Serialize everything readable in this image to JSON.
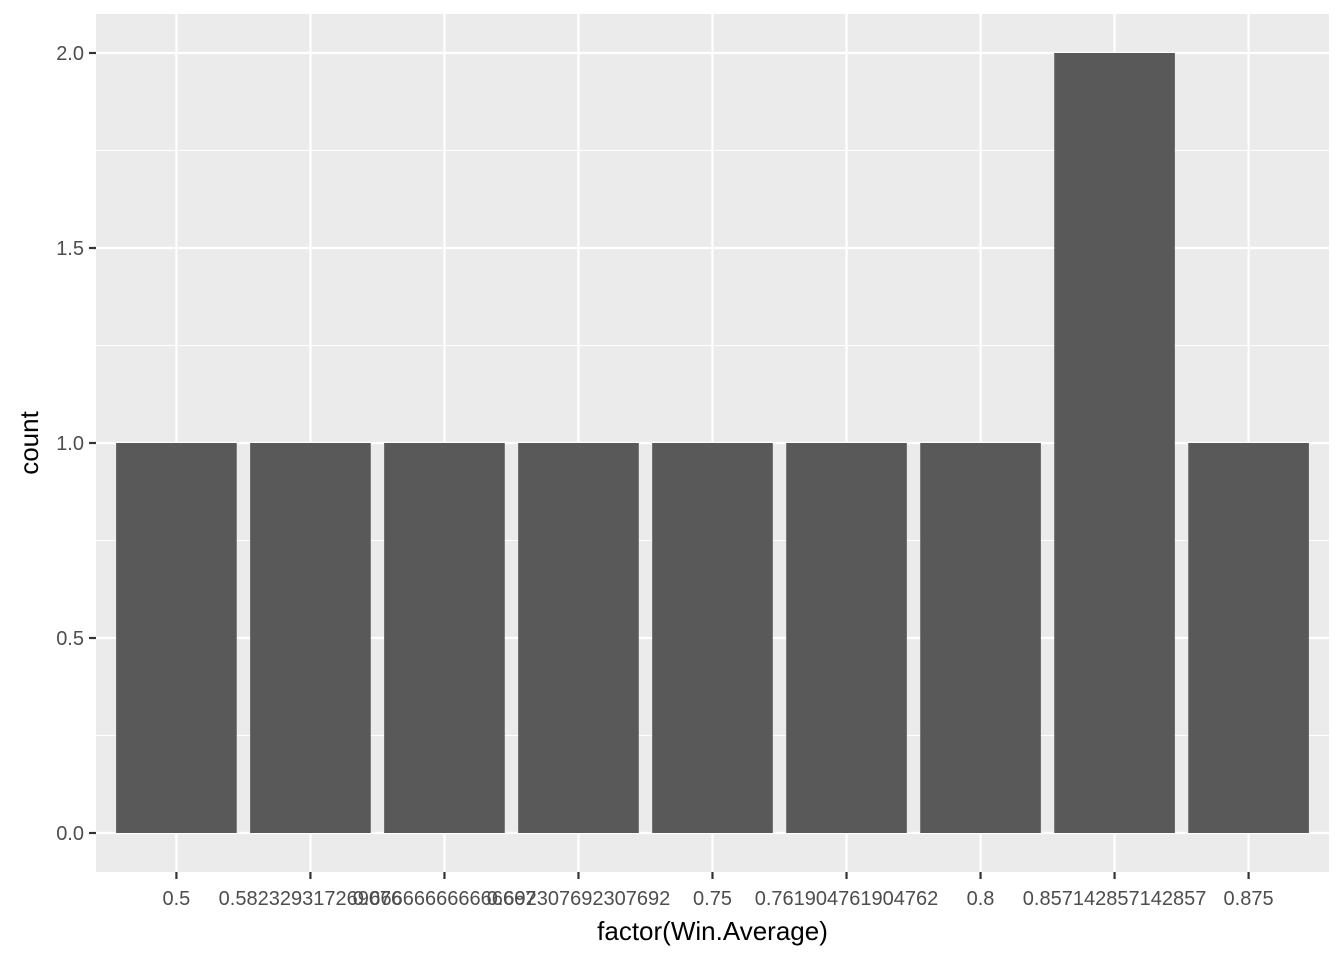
{
  "chart_data": {
    "type": "bar",
    "title": "",
    "xlabel": "factor(Win.Average)",
    "ylabel": "count",
    "categories": [
      "0.5",
      "0.582329317269076",
      "0.666666666666667",
      "0.692307692307692",
      "0.75",
      "0.761904761904762",
      "0.8",
      "0.857142857142857",
      "0.875"
    ],
    "values": [
      1,
      1,
      1,
      1,
      1,
      1,
      1,
      2,
      1
    ],
    "ylim": [
      -0.1,
      2.1
    ],
    "yticks": [
      0.0,
      0.5,
      1.0,
      1.5,
      2.0
    ],
    "ytick_labels": [
      "0.0",
      "0.5",
      "1.0",
      "1.5",
      "2.0"
    ],
    "grid": true,
    "colors": {
      "panel": "#ebebeb",
      "grid": "#ffffff",
      "bar": "#595959",
      "tick": "#333333"
    }
  }
}
